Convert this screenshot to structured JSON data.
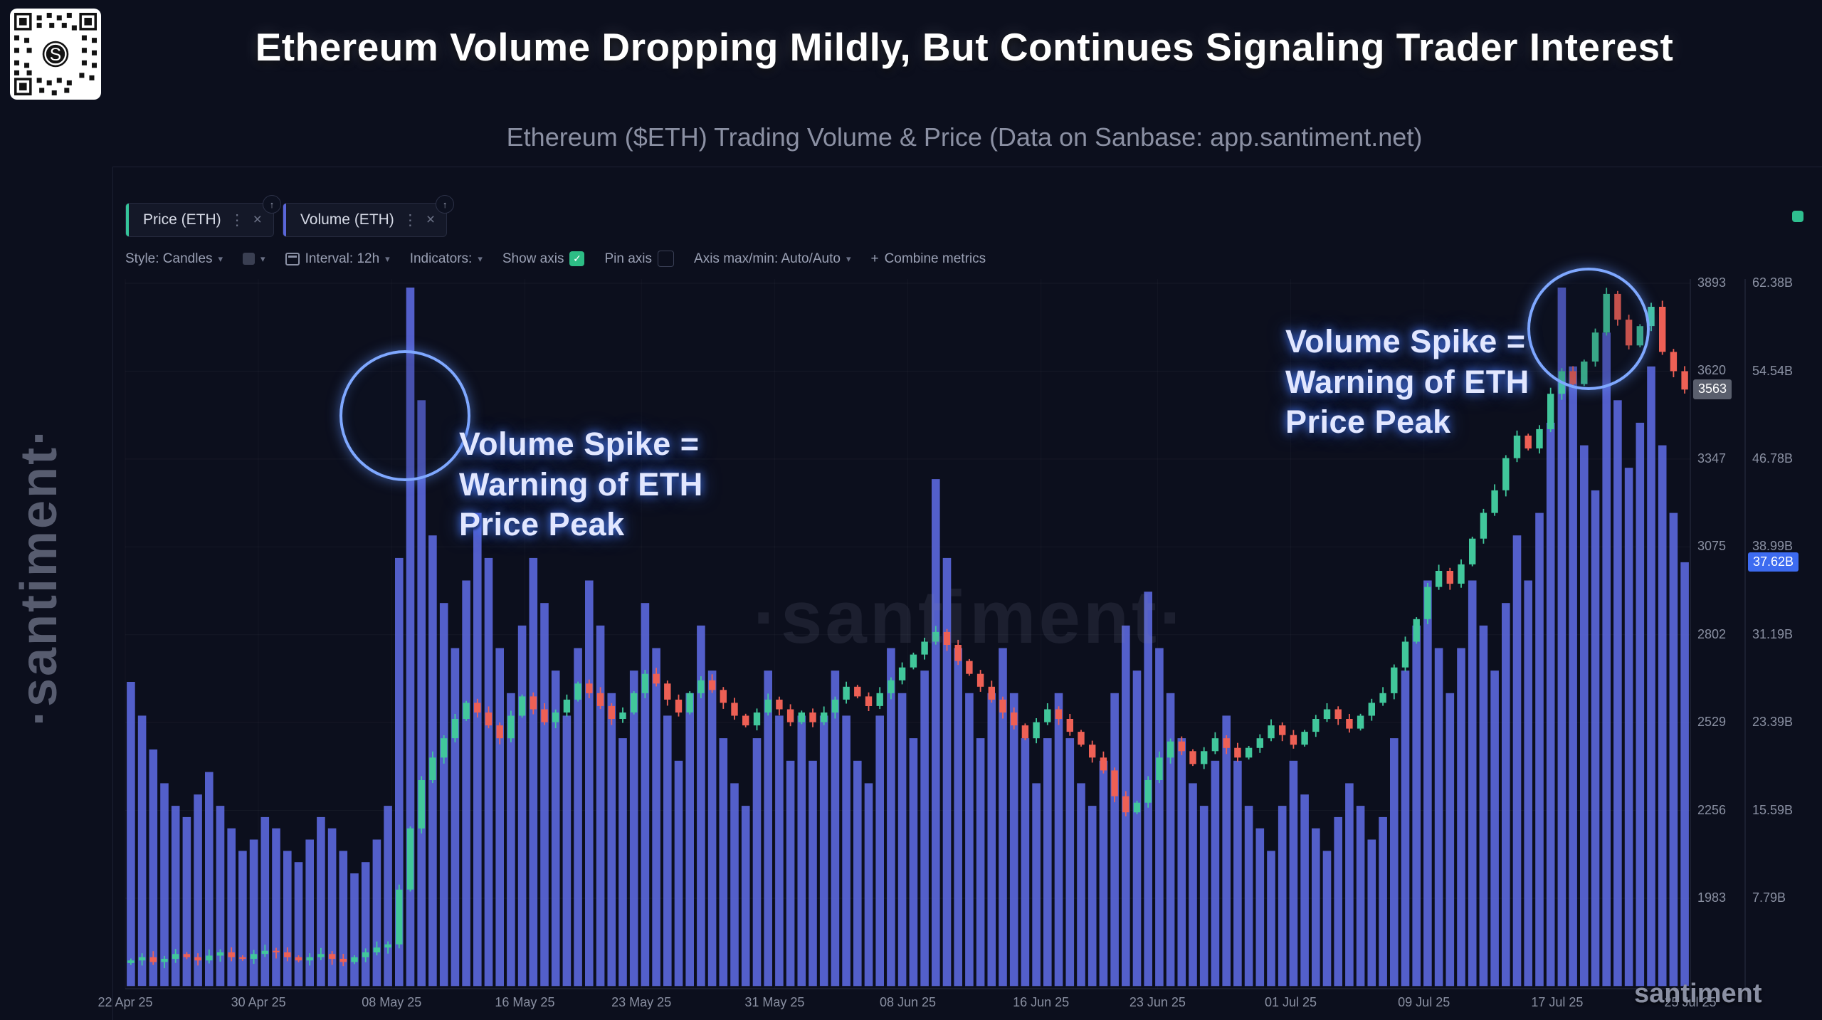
{
  "header": {
    "title": "Ethereum Volume Dropping Mildly, But Continues Signaling Trader Interest",
    "subtitle": "Ethereum ($ETH) Trading Volume & Price (Data on Sanbase: app.santiment.net)"
  },
  "branding": {
    "left_watermark": "·santiment·",
    "center_watermark": "·santiment·",
    "corner_watermark": "santiment"
  },
  "icons": {
    "chevron": "▾",
    "kebab": "⋮",
    "close": "×",
    "check": "✓",
    "plus": "+",
    "handle_arrow": "↑"
  },
  "tabs": [
    {
      "label": "Price (ETH)",
      "accent": "#35c49a"
    },
    {
      "label": "Volume (ETH)",
      "accent": "#5a66d9"
    }
  ],
  "toolbar": {
    "style_label": "Style: Candles",
    "interval_label": "Interval: 12h",
    "indicators_label": "Indicators:",
    "show_axis_label": "Show axis",
    "show_axis_checked": true,
    "pin_axis_label": "Pin axis",
    "pin_axis_checked": false,
    "axis_maxmin_label": "Axis max/min: Auto/Auto",
    "combine_label": "Combine metrics"
  },
  "annotations": {
    "lines": [
      "Volume Spike =",
      "Warning of ETH",
      "Price Peak"
    ]
  },
  "colors": {
    "background": "#0c0f1d",
    "volume_bar": "#5a66d9",
    "candle_up": "#41c79b",
    "candle_down": "#ee6055",
    "annotation_glow": "#4a7dff",
    "price_badge_bg": "#5a5f6d",
    "volume_badge_bg": "#3d6bf0",
    "checkbox_green": "#2dbd85"
  },
  "chart_data": {
    "type": "mixed",
    "title": "Ethereum ($ETH) Trading Volume & Price",
    "interval": "12h",
    "grid": true,
    "span_days": 94,
    "x_range": [
      "22 Apr 25",
      "25 Jul 25"
    ],
    "x_ticks": [
      "22 Apr 25",
      "30 Apr 25",
      "08 May 25",
      "16 May 25",
      "23 May 25",
      "31 May 25",
      "08 Jun 25",
      "16 Jun 25",
      "23 Jun 25",
      "01 Jul 25",
      "09 Jul 25",
      "17 Jul 25",
      "25 Jul 25"
    ],
    "x_tick_days": [
      0,
      8,
      16,
      24,
      31,
      39,
      47,
      55,
      62,
      70,
      78,
      86,
      94
    ],
    "price_axis": {
      "ticks": [
        3893,
        3620,
        3347,
        3075,
        2802,
        2529,
        2256,
        1983
      ],
      "current": 3563,
      "current_label": "3563"
    },
    "volume_axis": {
      "ticks_label": [
        "62.38B",
        "54.54B",
        "46.78B",
        "38.99B",
        "31.19B",
        "23.39B",
        "15.59B",
        "7.79B"
      ],
      "ticks_value": [
        62.38,
        54.54,
        46.78,
        38.99,
        31.19,
        23.39,
        15.59,
        7.79
      ],
      "current": 37.62,
      "current_label": "37.62B"
    },
    "series": [
      {
        "name": "Volume (ETH)",
        "type": "bar",
        "unit": "B",
        "color": "#5a66d9",
        "values": [
          27,
          24,
          21,
          18,
          16,
          15,
          17,
          19,
          16,
          14,
          12,
          13,
          15,
          14,
          12,
          11,
          13,
          15,
          14,
          12,
          10,
          11,
          13,
          16,
          38,
          62,
          52,
          40,
          34,
          30,
          36,
          42,
          38,
          30,
          26,
          32,
          38,
          34,
          28,
          24,
          30,
          36,
          32,
          26,
          22,
          28,
          34,
          30,
          24,
          20,
          26,
          32,
          28,
          22,
          18,
          16,
          22,
          28,
          24,
          20,
          24,
          20,
          24,
          28,
          24,
          20,
          18,
          24,
          30,
          26,
          22,
          28,
          45,
          38,
          30,
          26,
          22,
          26,
          30,
          26,
          22,
          18,
          22,
          26,
          22,
          18,
          16,
          20,
          26,
          32,
          28,
          35,
          30,
          26,
          22,
          18,
          16,
          20,
          24,
          20,
          16,
          14,
          12,
          16,
          20,
          17,
          14,
          12,
          15,
          18,
          16,
          13,
          15,
          22,
          28,
          32,
          36,
          30,
          26,
          30,
          36,
          32,
          28,
          34,
          40,
          36,
          42,
          50,
          62,
          55,
          48,
          44,
          58,
          52,
          46,
          50,
          55,
          48,
          42,
          37.62
        ]
      },
      {
        "name": "Price (ETH)",
        "type": "candlestick",
        "color_up": "#41c79b",
        "color_down": "#ee6055",
        "close": [
          1790,
          1800,
          1785,
          1795,
          1810,
          1800,
          1790,
          1805,
          1815,
          1800,
          1795,
          1810,
          1820,
          1815,
          1800,
          1790,
          1800,
          1810,
          1795,
          1785,
          1800,
          1815,
          1830,
          1840,
          2010,
          2200,
          2350,
          2420,
          2480,
          2540,
          2590,
          2560,
          2520,
          2480,
          2550,
          2610,
          2570,
          2530,
          2560,
          2600,
          2650,
          2620,
          2580,
          2540,
          2560,
          2620,
          2680,
          2650,
          2600,
          2560,
          2620,
          2660,
          2630,
          2590,
          2550,
          2520,
          2560,
          2600,
          2570,
          2530,
          2560,
          2530,
          2560,
          2600,
          2640,
          2610,
          2580,
          2620,
          2660,
          2700,
          2740,
          2780,
          2810,
          2770,
          2720,
          2680,
          2640,
          2600,
          2560,
          2520,
          2480,
          2530,
          2570,
          2540,
          2500,
          2460,
          2420,
          2380,
          2300,
          2250,
          2280,
          2350,
          2420,
          2470,
          2440,
          2400,
          2440,
          2480,
          2450,
          2420,
          2450,
          2480,
          2520,
          2490,
          2460,
          2500,
          2540,
          2570,
          2540,
          2510,
          2550,
          2590,
          2620,
          2700,
          2780,
          2850,
          2950,
          3000,
          2960,
          3020,
          3100,
          3180,
          3250,
          3350,
          3420,
          3380,
          3440,
          3550,
          3620,
          3580,
          3650,
          3740,
          3860,
          3780,
          3700,
          3760,
          3820,
          3680,
          3620,
          3563
        ]
      }
    ]
  }
}
